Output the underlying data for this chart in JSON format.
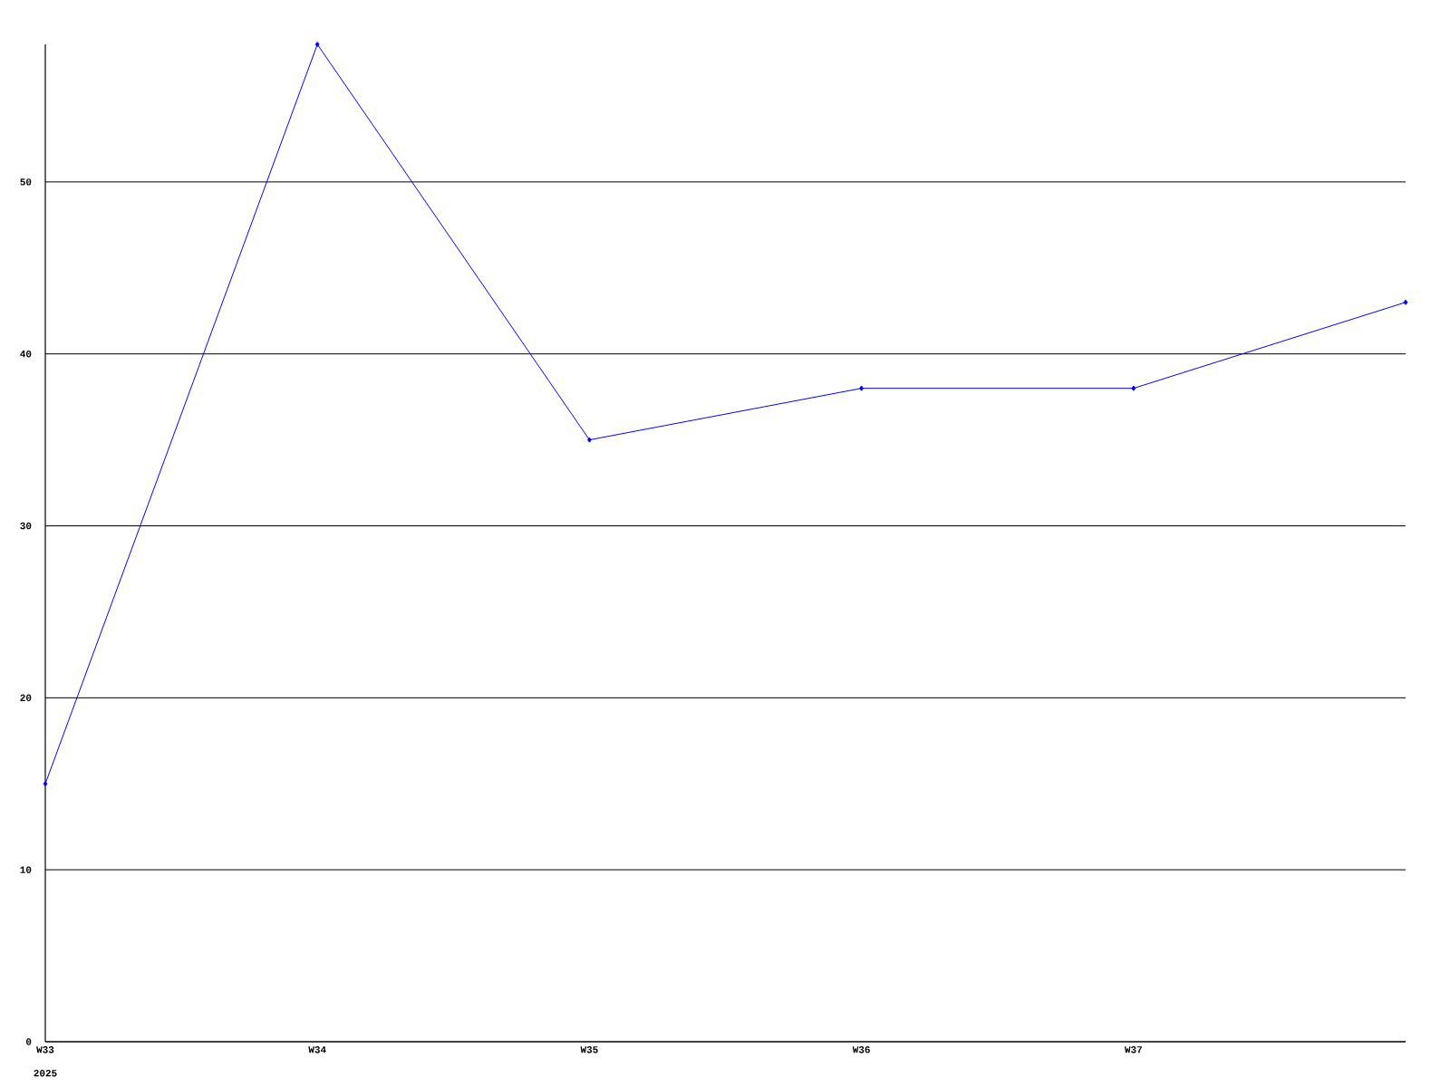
{
  "chart_data": {
    "type": "line",
    "categories": [
      "W33",
      "W34",
      "W35",
      "W36",
      "W37",
      null
    ],
    "series": [
      {
        "color": "#0000ff",
        "values": [
          15,
          58,
          35,
          38,
          38,
          43
        ]
      }
    ],
    "ylim": [
      0,
      58
    ],
    "yticks": [
      0,
      10,
      20,
      30,
      40,
      50
    ],
    "grid": "y",
    "marker": "diamond",
    "line_style": "solid",
    "annotations": [
      "2025"
    ]
  }
}
